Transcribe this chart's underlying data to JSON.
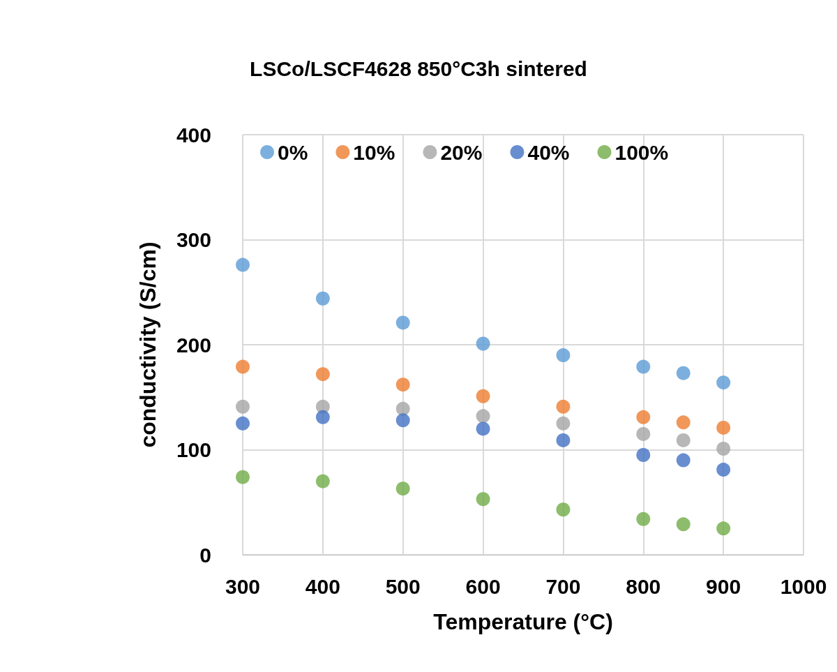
{
  "chart_data": {
    "type": "scatter",
    "title": "LSCo/LSCF4628 850°C3h sintered",
    "xlabel": "Temperature (°C)",
    "ylabel": "conductivity (S/cm)",
    "x": [
      300,
      400,
      500,
      600,
      700,
      800,
      850,
      900
    ],
    "series": [
      {
        "name": "0%",
        "color": "#5b9bd5",
        "values": [
          276,
          244,
          221,
          201,
          190,
          179,
          173,
          164
        ]
      },
      {
        "name": "10%",
        "color": "#ed7d31",
        "values": [
          179,
          172,
          162,
          151,
          141,
          131,
          126,
          121
        ]
      },
      {
        "name": "20%",
        "color": "#a5a5a5",
        "values": [
          141,
          141,
          139,
          132,
          125,
          115,
          109,
          101
        ]
      },
      {
        "name": "40%",
        "color": "#4472c4",
        "values": [
          125,
          131,
          128,
          120,
          109,
          95,
          90,
          81
        ]
      },
      {
        "name": "100%",
        "color": "#70ad47",
        "values": [
          74,
          70,
          63,
          53,
          43,
          34,
          29,
          25
        ]
      }
    ],
    "xlim": [
      300,
      1000
    ],
    "xticks": [
      300,
      400,
      500,
      600,
      700,
      800,
      900,
      1000
    ],
    "ylim": [
      0,
      400
    ],
    "yticks": [
      0,
      100,
      200,
      300,
      400
    ],
    "grid": true,
    "legend": "top",
    "marker": "circle"
  }
}
